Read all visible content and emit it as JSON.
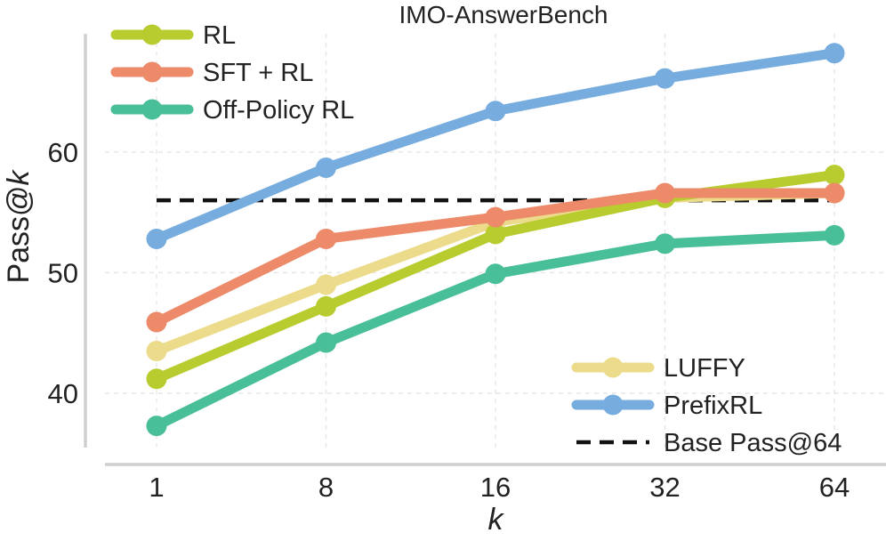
{
  "chart_data": {
    "type": "line",
    "title": "IMO-AnswerBench",
    "xlabel": "k",
    "ylabel": "Pass@k",
    "x_categories": [
      "1",
      "8",
      "16",
      "32",
      "64"
    ],
    "y_ticks": [
      40,
      50,
      60
    ],
    "ylim": [
      35.5,
      69.8
    ],
    "grid": true,
    "series": [
      {
        "name": "LUFFY",
        "color": "#ecdb8a",
        "values": [
          43.5,
          49.0,
          54.2,
          56.2,
          56.6
        ]
      },
      {
        "name": "RL",
        "color": "#b8cc2f",
        "values": [
          41.2,
          47.2,
          53.2,
          56.2,
          58.1
        ]
      },
      {
        "name": "SFT + RL",
        "color": "#ec8a6a",
        "values": [
          45.9,
          52.8,
          54.6,
          56.6,
          56.6
        ]
      },
      {
        "name": "Off-Policy RL",
        "color": "#48bf98",
        "values": [
          37.3,
          44.2,
          49.9,
          52.4,
          53.1
        ]
      },
      {
        "name": "PrefixRL",
        "color": "#77acdf",
        "values": [
          52.8,
          58.7,
          63.4,
          66.1,
          68.2
        ]
      }
    ],
    "baseline": {
      "name": "Base Pass@64",
      "value": 56.0,
      "color": "#111111"
    },
    "legends": [
      {
        "placement": "top-left",
        "entries": [
          "RL",
          "SFT + RL",
          "Off-Policy RL"
        ]
      },
      {
        "placement": "bottom-right",
        "entries": [
          "LUFFY",
          "PrefixRL",
          "Base Pass@64"
        ]
      }
    ]
  }
}
